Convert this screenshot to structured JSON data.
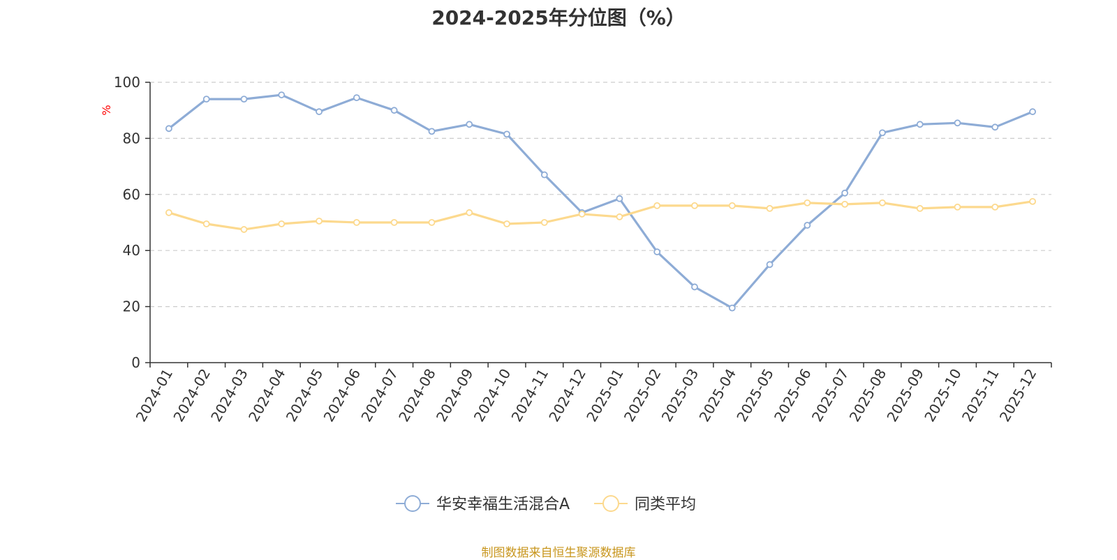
{
  "chart_data": {
    "type": "line",
    "title": "2024-2025年分位图（%）",
    "ylabel": "%",
    "ylim": [
      0,
      100
    ],
    "yticks": [
      0,
      20,
      40,
      60,
      80,
      100
    ],
    "grid": true,
    "legend_position": "bottom-center",
    "categories": [
      "2024-01",
      "2024-02",
      "2024-03",
      "2024-04",
      "2024-05",
      "2024-06",
      "2024-07",
      "2024-08",
      "2024-09",
      "2024-10",
      "2024-11",
      "2024-12",
      "2025-01",
      "2025-02",
      "2025-03",
      "2025-04",
      "2025-05",
      "2025-06",
      "2025-07",
      "2025-08",
      "2025-09",
      "2025-10",
      "2025-11",
      "2025-12"
    ],
    "series": [
      {
        "name": "华安幸福生活混合A",
        "color": "#8eacd6",
        "values": [
          83.5,
          94.0,
          94.0,
          95.5,
          89.5,
          94.5,
          90.0,
          82.5,
          85.0,
          81.5,
          67.0,
          53.5,
          58.5,
          39.5,
          27.0,
          19.5,
          35.0,
          49.0,
          60.5,
          82.0,
          85.0,
          85.5,
          84.0,
          89.5
        ]
      },
      {
        "name": "同类平均",
        "color": "#fcd98e",
        "values": [
          53.5,
          49.5,
          47.5,
          49.5,
          50.5,
          50.0,
          50.0,
          50.0,
          53.5,
          49.5,
          50.0,
          53.0,
          52.0,
          56.0,
          56.0,
          56.0,
          55.0,
          57.0,
          56.5,
          57.0,
          55.0,
          55.5,
          55.5,
          57.5
        ]
      }
    ]
  },
  "source_note": "制图数据来自恒生聚源数据库"
}
